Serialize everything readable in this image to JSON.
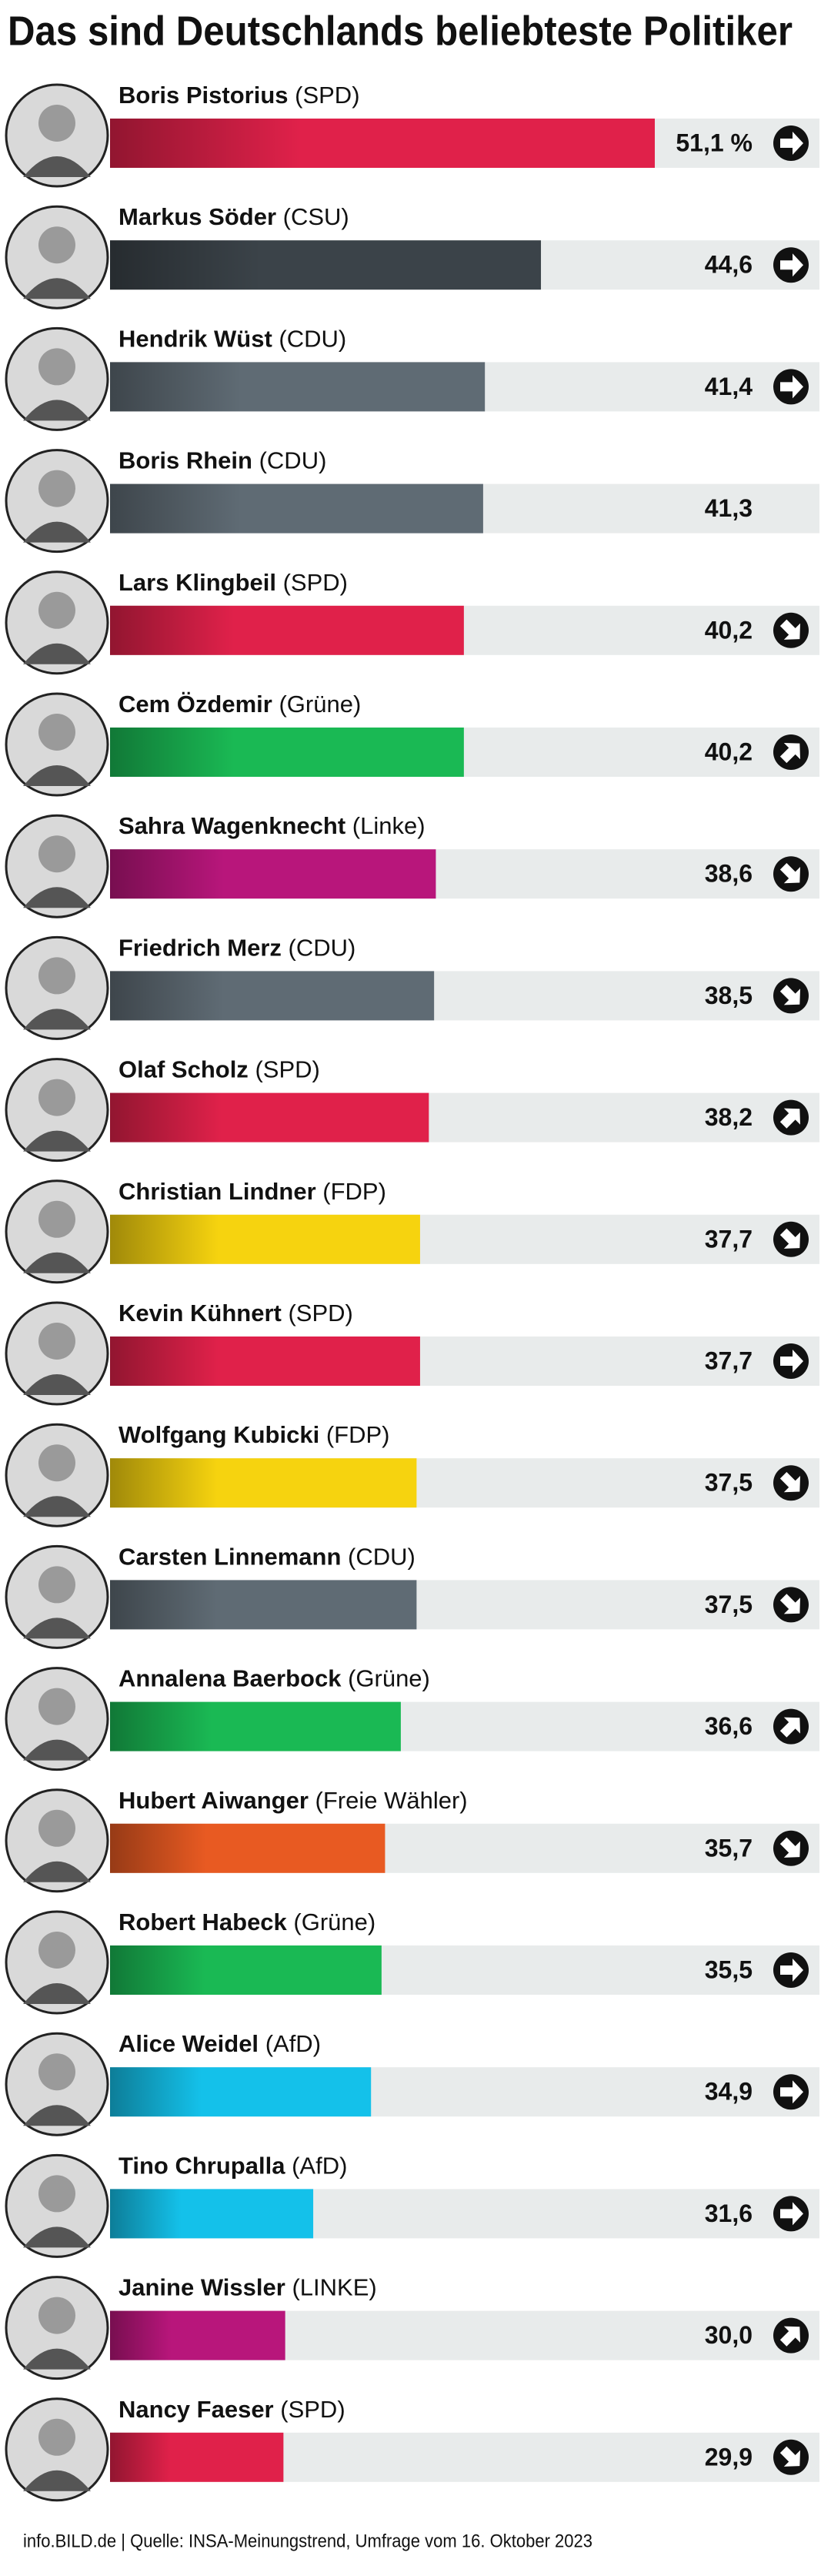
{
  "chart_data": {
    "type": "bar",
    "orientation": "horizontal",
    "title": "Das sind Deutschlands beliebteste Politiker",
    "categories": [
      "Boris Pistorius",
      "Markus Söder",
      "Hendrik Wüst",
      "Boris Rhein",
      "Lars Klingbeil",
      "Cem Özdemir",
      "Sahra Wagenknecht",
      "Friedrich Merz",
      "Olaf Scholz",
      "Christian Lindner",
      "Kevin Kühnert",
      "Wolfgang Kubicki",
      "Carsten Linnemann",
      "Annalena Baerbock",
      "Hubert Aiwanger",
      "Robert Habeck",
      "Alice Weidel",
      "Tino Chrupalla",
      "Janine Wissler",
      "Nancy Faeser"
    ],
    "parties": [
      "(SPD)",
      "(CSU)",
      "(CDU)",
      "(CDU)",
      "(SPD)",
      "(Grüne)",
      "(Linke)",
      "(CDU)",
      "(SPD)",
      "(FDP)",
      "(SPD)",
      "(FDP)",
      "(CDU)",
      "(Grüne)",
      "(Freie Wähler)",
      "(Grüne)",
      "(AfD)",
      "(AfD)",
      "(LINKE)",
      "(SPD)"
    ],
    "values": [
      51.1,
      44.6,
      41.4,
      41.3,
      40.2,
      40.2,
      38.6,
      38.5,
      38.2,
      37.7,
      37.7,
      37.5,
      37.5,
      36.6,
      35.7,
      35.5,
      34.9,
      31.6,
      30.0,
      29.9
    ],
    "value_labels": [
      "51,1 %",
      "44,6",
      "41,4",
      "41,3",
      "40,2",
      "40,2",
      "38,6",
      "38,5",
      "38,2",
      "37,7",
      "37,7",
      "37,5",
      "37,5",
      "36,6",
      "35,7",
      "35,5",
      "34,9",
      "31,6",
      "30,0",
      "29,9"
    ],
    "colors": [
      "#e0214a",
      "#3b4349",
      "#5f6b74",
      "#5f6b74",
      "#e0214a",
      "#1ab954",
      "#b8167b",
      "#5f6b74",
      "#e0214a",
      "#f6d30f",
      "#e0214a",
      "#f6d30f",
      "#5f6b74",
      "#1ab954",
      "#e85a22",
      "#1ab954",
      "#14c1ea",
      "#14c1ea",
      "#b8167b",
      "#e0214a"
    ],
    "trends": [
      "right",
      "right",
      "right",
      null,
      "down-right",
      "up-right",
      "down-right",
      "down-right",
      "up-right",
      "down-right",
      "right",
      "down-right",
      "down-right",
      "up-right",
      "down-right",
      "right",
      "right",
      "right",
      "up-right",
      "down-right"
    ],
    "xlim": [
      20,
      60.5
    ],
    "source": "info.BILD.de | Quelle: INSA-Meinungstrend, Umfrage vom 16. Oktober 2023"
  }
}
